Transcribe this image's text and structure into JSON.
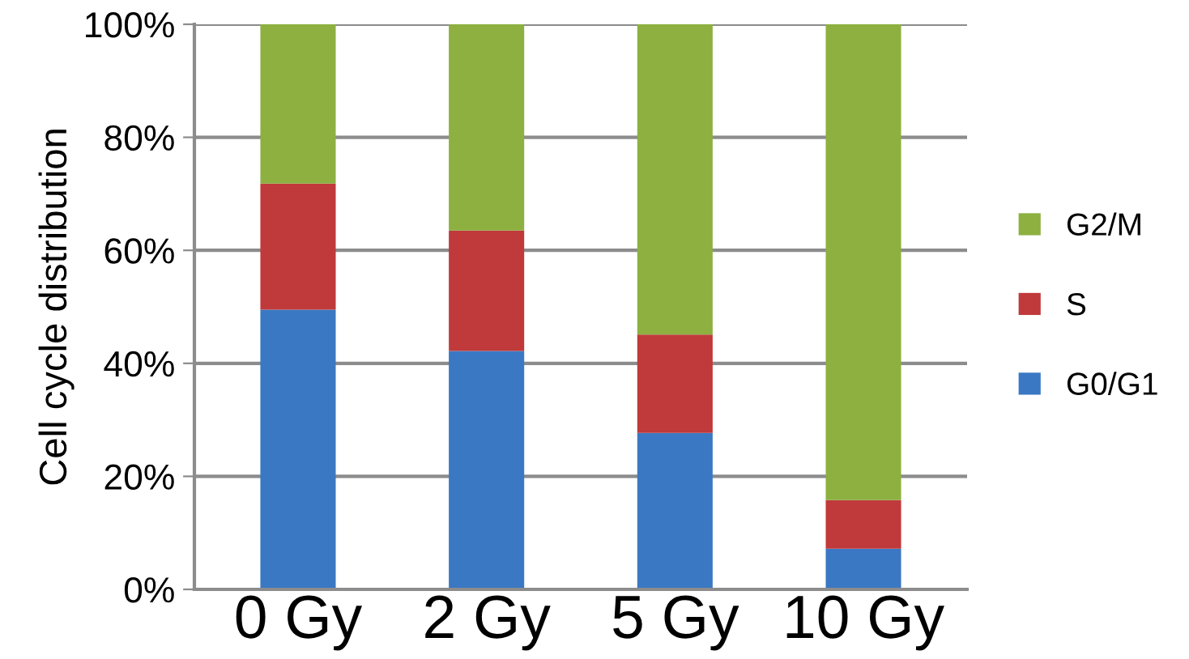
{
  "chart_data": {
    "type": "bar",
    "stacked": true,
    "ylabel": "Cell cycle distribution",
    "categories": [
      "0 Gy",
      "2 Gy",
      "5 Gy",
      "10 Gy"
    ],
    "series": [
      {
        "name": "G0/G1",
        "color": "#3a78c3",
        "values": [
          49.5,
          42.2,
          27.7,
          7.2
        ]
      },
      {
        "name": "S",
        "color": "#c0393b",
        "values": [
          22.3,
          21.3,
          17.4,
          8.6
        ]
      },
      {
        "name": "G2/M",
        "color": "#8db040",
        "values": [
          28.2,
          36.5,
          54.9,
          84.2
        ]
      }
    ],
    "ylim": [
      0,
      100
    ],
    "yticks": [
      {
        "value": 0,
        "label": "0%"
      },
      {
        "value": 20,
        "label": "20%"
      },
      {
        "value": 40,
        "label": "40%"
      },
      {
        "value": 60,
        "label": "60%"
      },
      {
        "value": 80,
        "label": "80%"
      },
      {
        "value": 100,
        "label": "100%"
      }
    ],
    "grid": "y",
    "legend": "right"
  }
}
